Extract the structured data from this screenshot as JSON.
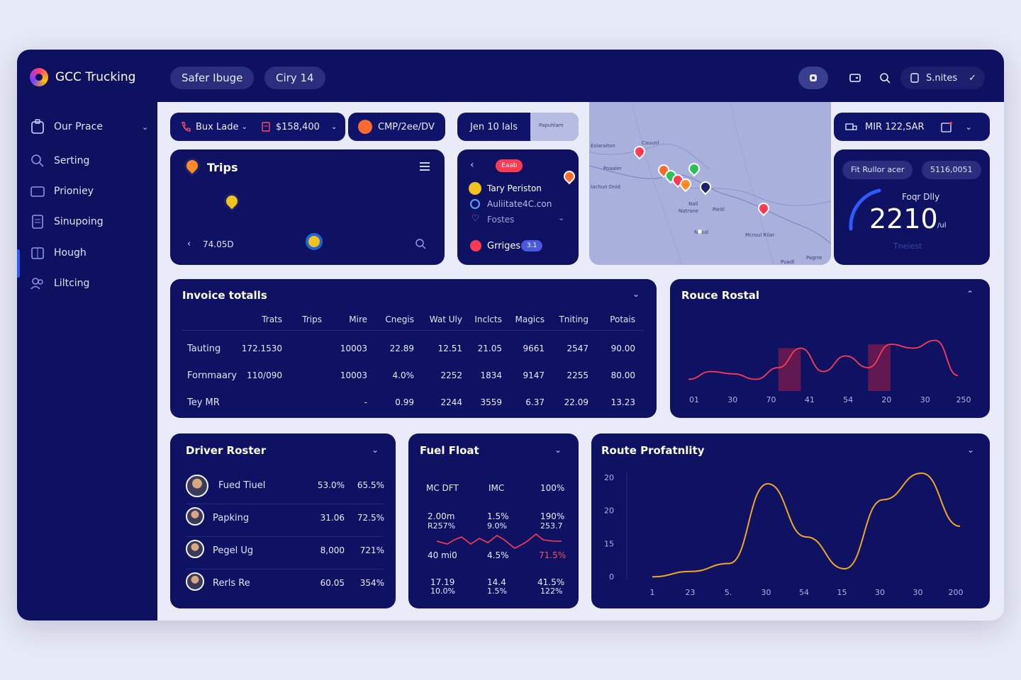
{
  "app": {
    "title": "GCC Trucking"
  },
  "header": {
    "tabs": [
      "Safer Ibuge",
      "Ciry 14"
    ],
    "user_label": "S.nites"
  },
  "sidebar": {
    "items": [
      {
        "label": "Our Prace",
        "icon": "clipboard-icon"
      },
      {
        "label": "Serting",
        "icon": "search-icon"
      },
      {
        "label": "Prioniey",
        "icon": "wallet-icon"
      },
      {
        "label": "Sinupoing",
        "icon": "document-icon"
      },
      {
        "label": "Hough",
        "icon": "building-icon"
      },
      {
        "label": "Liltcing",
        "icon": "people-icon"
      }
    ]
  },
  "filters": {
    "chip1_a": "Bux Lade",
    "chip1_b": "$158,400",
    "chip2": "CMP/2ee/DV",
    "chip3": "Jen 10 Ials",
    "chip3_map_label": "Papuhlam",
    "chip4": "MIR 122,SAR"
  },
  "trips": {
    "title": "Trips",
    "value": "74.05D"
  },
  "contact": {
    "tag": "Eaab",
    "name": "Tary Periston",
    "email": "Auliitate4C.con",
    "sub": "Fostes",
    "bottom": "Grriges",
    "bottom_badge": "3.1"
  },
  "map": {
    "labels": [
      "Cauunl",
      "Eslaraiton",
      "Poaaler",
      "Iachun Dnid",
      "Nall",
      "Natrane",
      "Pieitl",
      "Mcroul Rilar",
      "Naaal",
      "Puadl"
    ],
    "corner_label": "Pagrre"
  },
  "kpi": {
    "chip_a": "Fit Rullor acer",
    "chip_b": "5116,0051",
    "label": "Foqr Dlly",
    "value": "2210",
    "unit": "/ul",
    "foot": "Tneiest",
    "gauge_fraction": 0.28
  },
  "invoice": {
    "title": "Invoice totalls",
    "columns": [
      "",
      "Trats",
      "Trips",
      "Mire",
      "Cnegis",
      "Wat Uly",
      "Inclcts",
      "Magics",
      "Tniting",
      "Potais"
    ],
    "rows": [
      [
        "Tauting",
        "172.1530",
        "",
        "10003",
        "22.89",
        "12.51",
        "21.05",
        "9661",
        "2547",
        "90.00"
      ],
      [
        "Fornmaary",
        "110/090",
        "",
        "10003",
        "4.0%",
        "2252",
        "1834",
        "9147",
        "2255",
        "80.00"
      ],
      [
        "Tey MR",
        "",
        "",
        "-",
        "0.99",
        "2244",
        "3559",
        "6.37",
        "22.09",
        "13.23"
      ]
    ]
  },
  "route_rostal": {
    "title": "Rouce Rostal",
    "chart_data": {
      "type": "area",
      "title": "Rouce Rostal",
      "x_ticks": [
        "01",
        "30",
        "70",
        "41",
        "54",
        "20",
        "30",
        "250"
      ],
      "y": [
        0.15,
        0.25,
        0.22,
        0.15,
        0.3,
        0.55,
        0.25,
        0.45,
        0.3,
        0.6,
        0.55,
        0.65,
        0.2
      ],
      "highlight_bars": [
        {
          "from_index": 4,
          "to_index": 5,
          "value": 0.55
        },
        {
          "from_index": 8,
          "to_index": 9,
          "value": 0.6
        }
      ]
    }
  },
  "driver_roster": {
    "title": "Driver Roster",
    "rows": [
      {
        "name": "Fued Tiuel",
        "a": "53.0%",
        "b": "65.5%"
      },
      {
        "name": "Papking",
        "a": "31.06",
        "b": "72.5%"
      },
      {
        "name": "Pegel Ug",
        "a": "8,000",
        "b": "721%"
      },
      {
        "name": "Rerls Re",
        "a": "60.05",
        "b": "354%"
      }
    ]
  },
  "fuel_float": {
    "title": "Fuel Float",
    "header": [
      "MC DFT",
      "IMC",
      "100%"
    ],
    "row1": [
      "2.00m",
      "1.5%",
      "190%"
    ],
    "row1b": [
      "R257%",
      "9.0%",
      "253.7"
    ],
    "row2": [
      "40 mi0",
      "4.5%",
      "71.5%"
    ],
    "row3": [
      "17.19",
      "14.4",
      "41.5%"
    ],
    "row3b": [
      "10.0%",
      "1.5%",
      "122%"
    ]
  },
  "route_profitability": {
    "title": "Route Profatnlity",
    "chart_data": {
      "type": "line",
      "title": "Route Profatnlity",
      "x": [
        "1",
        "23",
        "5.",
        "30",
        "54",
        "15",
        "30",
        "30",
        "200"
      ],
      "y_ticks": [
        "20",
        "20",
        "15",
        "0"
      ],
      "values": [
        0.5,
        1.5,
        3,
        18,
        8,
        2,
        15,
        20,
        10
      ],
      "color": "#f2a622"
    }
  },
  "colors": {
    "accent": "#2e5bff",
    "bg": "#0e1160",
    "card": "#0f1262",
    "red": "#ff3b53",
    "orange": "#f2a622"
  }
}
